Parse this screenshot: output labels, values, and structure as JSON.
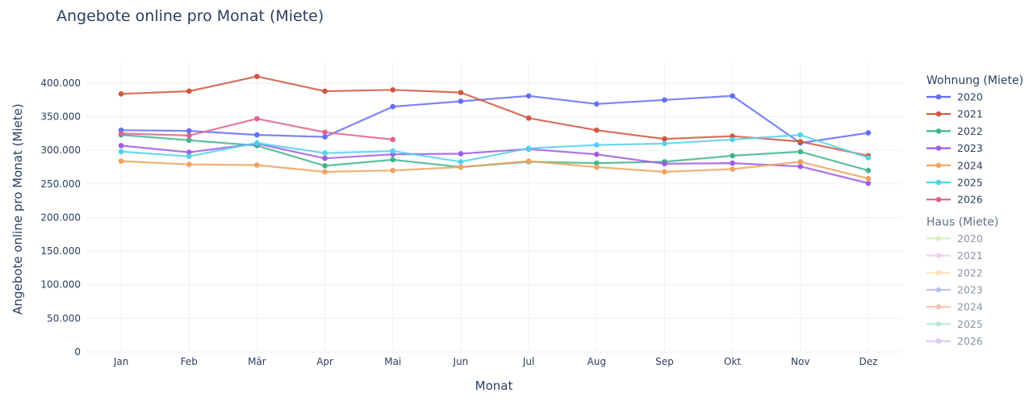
{
  "chart_data": {
    "type": "line",
    "title": "Angebote online pro Monat (Miete)",
    "xlabel": "Monat",
    "ylabel": "Angebote online pro Monat (Miete)",
    "categories": [
      "Jan",
      "Feb",
      "Mär",
      "Apr",
      "Mai",
      "Jun",
      "Jul",
      "Aug",
      "Sep",
      "Okt",
      "Nov",
      "Dez"
    ],
    "ylim": [
      0,
      430000
    ],
    "yticks": [
      0,
      50000,
      100000,
      150000,
      200000,
      250000,
      300000,
      350000,
      400000
    ],
    "ytick_labels": [
      "0",
      "50.000",
      "100.000",
      "150.000",
      "200.000",
      "250.000",
      "300.000",
      "350.000",
      "400.000"
    ],
    "grid": true,
    "legend_position": "right",
    "legend_groups": [
      {
        "title": "Wohnung (Miete)",
        "series": [
          {
            "name": "2020",
            "color": "#636efa",
            "values": [
              330000,
              329000,
              323000,
              320000,
              365000,
              373000,
              381000,
              369000,
              375000,
              381000,
              311000,
              326000
            ]
          },
          {
            "name": "2021",
            "color": "#d0573e",
            "values": [
              384000,
              388000,
              410000,
              388000,
              390000,
              386000,
              348000,
              330000,
              317000,
              321000,
              313000,
              292000
            ]
          },
          {
            "name": "2022",
            "color": "#3fb58c",
            "values": [
              323000,
              315000,
              307000,
              277000,
              286000,
              275000,
              283000,
              281000,
              283000,
              292000,
              298000,
              270000
            ]
          },
          {
            "name": "2023",
            "color": "#a15be6",
            "values": [
              307000,
              297000,
              310000,
              288000,
              294000,
              295000,
              302000,
              294000,
              280000,
              281000,
              276000,
              251000
            ]
          },
          {
            "name": "2024",
            "color": "#eea35e",
            "values": [
              284000,
              279000,
              278000,
              268000,
              270000,
              275000,
              284000,
              275000,
              268000,
              272000,
              283000,
              258000
            ]
          },
          {
            "name": "2025",
            "color": "#53d1ea",
            "values": [
              298000,
              291000,
              311000,
              296000,
              299000,
              283000,
              303000,
              308000,
              310000,
              316000,
              323000,
              289000
            ]
          },
          {
            "name": "2026",
            "color": "#e0628e",
            "values": [
              325000,
              322000,
              347000,
              327000,
              316000,
              null,
              null,
              null,
              null,
              null,
              null,
              null
            ]
          }
        ]
      },
      {
        "title": "Haus (Miete)",
        "dimmed": true,
        "series": [
          {
            "name": "2020",
            "color": "#d5f0be"
          },
          {
            "name": "2021",
            "color": "#f6c9ee"
          },
          {
            "name": "2022",
            "color": "#f9e2b4"
          },
          {
            "name": "2023",
            "color": "#b9bee6"
          },
          {
            "name": "2024",
            "color": "#f2c1ad"
          },
          {
            "name": "2025",
            "color": "#b7e6d7"
          },
          {
            "name": "2026",
            "color": "#d9c6f4"
          }
        ]
      }
    ]
  }
}
